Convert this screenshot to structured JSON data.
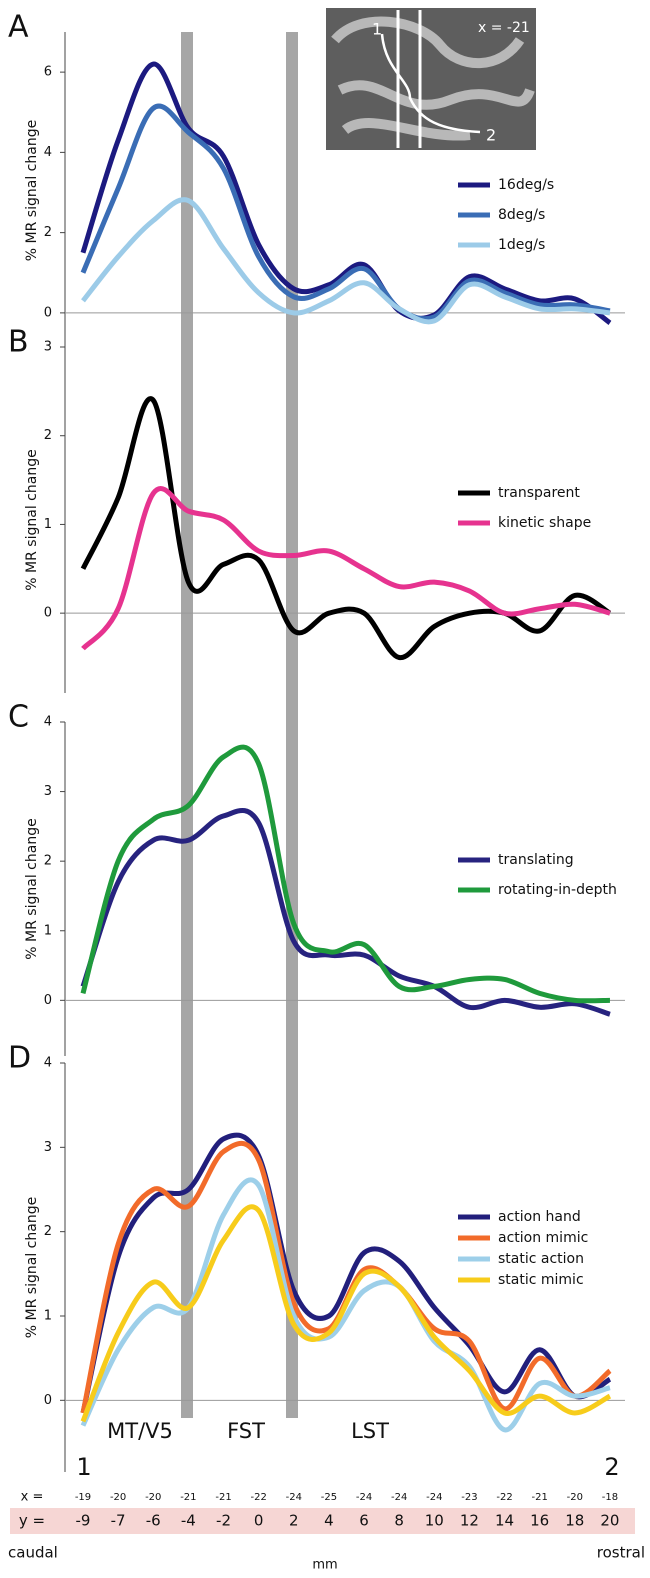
{
  "chart_data": [
    {
      "type": "line",
      "letter": "A",
      "ylabel": "% MR signal change",
      "ylim": [
        -0.9,
        7
      ],
      "yticks": [
        0,
        2,
        4,
        6
      ],
      "series": [
        {
          "name": "16deg/s",
          "color": "#1c1a80",
          "values": [
            1.5,
            4.3,
            6.2,
            4.6,
            3.9,
            1.7,
            0.6,
            0.7,
            1.2,
            0.05,
            -0.05,
            0.9,
            0.6,
            0.3,
            0.35,
            -0.25
          ]
        },
        {
          "name": "8deg/s",
          "color": "#3a6db5",
          "values": [
            1.0,
            3.1,
            5.1,
            4.5,
            3.6,
            1.4,
            0.4,
            0.6,
            1.1,
            0.1,
            -0.1,
            0.8,
            0.5,
            0.2,
            0.2,
            0.05
          ]
        },
        {
          "name": "1deg/s",
          "color": "#9ccbe8",
          "values": [
            0.3,
            1.4,
            2.3,
            2.8,
            1.6,
            0.5,
            0.0,
            0.3,
            0.75,
            0.1,
            -0.2,
            0.7,
            0.4,
            0.1,
            0.1,
            0.0
          ]
        }
      ]
    },
    {
      "type": "line",
      "letter": "B",
      "ylabel": "% MR signal change",
      "ylim": [
        -0.9,
        3
      ],
      "yticks": [
        0,
        1,
        2,
        3
      ],
      "series": [
        {
          "name": "transparent",
          "color": "#000000",
          "values": [
            0.5,
            1.3,
            2.4,
            0.35,
            0.55,
            0.6,
            -0.2,
            0.0,
            0.0,
            -0.5,
            -0.15,
            0.0,
            0.0,
            -0.2,
            0.2,
            0.0
          ]
        },
        {
          "name": "kinetic shape",
          "color": "#e6338f",
          "values": [
            -0.4,
            0.05,
            1.35,
            1.15,
            1.05,
            0.7,
            0.65,
            0.7,
            0.5,
            0.3,
            0.35,
            0.25,
            0.0,
            0.05,
            0.1,
            0.0
          ]
        }
      ]
    },
    {
      "type": "line",
      "letter": "C",
      "ylabel": "% MR signal change",
      "ylim": [
        -0.8,
        4
      ],
      "yticks": [
        0,
        1,
        2,
        3,
        4
      ],
      "series": [
        {
          "name": "translating",
          "color": "#27237f",
          "values": [
            0.2,
            1.7,
            2.3,
            2.3,
            2.65,
            2.55,
            0.85,
            0.65,
            0.65,
            0.35,
            0.2,
            -0.1,
            0.0,
            -0.1,
            -0.05,
            -0.2
          ]
        },
        {
          "name": "rotating-in-depth",
          "color": "#1f9a3c",
          "values": [
            0.1,
            2.0,
            2.6,
            2.8,
            3.5,
            3.4,
            1.1,
            0.7,
            0.8,
            0.2,
            0.2,
            0.3,
            0.3,
            0.1,
            0.0,
            0.0
          ]
        }
      ]
    },
    {
      "type": "line",
      "letter": "D",
      "ylabel": "% MR signal change",
      "ylim": [
        -0.85,
        4
      ],
      "yticks": [
        0,
        1,
        2,
        3,
        4
      ],
      "series": [
        {
          "name": "action hand",
          "color": "#221f7c",
          "values": [
            -0.15,
            1.7,
            2.4,
            2.5,
            3.1,
            2.9,
            1.3,
            1.0,
            1.75,
            1.65,
            1.1,
            0.65,
            0.1,
            0.6,
            0.05,
            0.25
          ]
        },
        {
          "name": "action mimic",
          "color": "#f26b2a",
          "values": [
            -0.15,
            1.85,
            2.5,
            2.3,
            2.95,
            2.85,
            1.15,
            0.85,
            1.55,
            1.35,
            0.85,
            0.7,
            -0.1,
            0.5,
            0.05,
            0.35
          ]
        },
        {
          "name": "static action",
          "color": "#9dcfe9",
          "values": [
            -0.3,
            0.6,
            1.1,
            1.1,
            2.2,
            2.55,
            1.0,
            0.75,
            1.3,
            1.35,
            0.7,
            0.4,
            -0.35,
            0.2,
            0.05,
            0.15
          ]
        },
        {
          "name": "static mimic",
          "color": "#f7cc1b",
          "values": [
            -0.25,
            0.8,
            1.4,
            1.1,
            1.9,
            2.25,
            0.9,
            0.8,
            1.5,
            1.35,
            0.75,
            0.35,
            -0.15,
            0.05,
            -0.15,
            0.05
          ]
        }
      ]
    }
  ],
  "inset": {
    "label": "x = -21",
    "start": "1",
    "end": "2"
  },
  "regions": [
    "MT/V5",
    "FST",
    "LST"
  ],
  "endpoints": [
    "1",
    "2"
  ],
  "coordinates": {
    "x_label": "x =",
    "x": [
      -19,
      -20,
      -20,
      -21,
      -21,
      -22,
      -24,
      -25,
      -24,
      -24,
      -24,
      -23,
      -22,
      -21,
      -20,
      -18
    ],
    "y_label": "y =",
    "y": [
      -9,
      -7,
      -6,
      -4,
      -2,
      0,
      2,
      4,
      6,
      8,
      10,
      12,
      14,
      16,
      18,
      20
    ]
  },
  "directions": {
    "start": "caudal",
    "unit": "mm",
    "end": "rostral"
  }
}
